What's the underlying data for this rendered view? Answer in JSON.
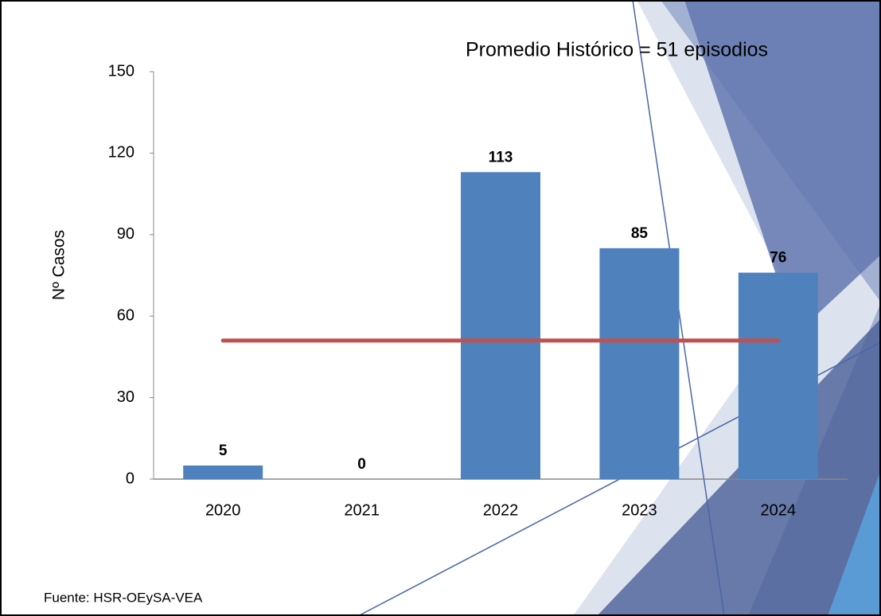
{
  "chart_data": {
    "type": "bar",
    "annotation": "Promedio Histórico = 51 episodios",
    "y_label": "Nº  Casos",
    "source": "Fuente: HSR-OEySA-VEA",
    "categories": [
      "2020",
      "2021",
      "2022",
      "2023",
      "2024"
    ],
    "values": [
      5,
      0,
      113,
      85,
      76
    ],
    "color": "#4f81bd",
    "average": {
      "value": 51,
      "color": "#c0504d"
    },
    "ylim": [
      0,
      150
    ],
    "yticks": [
      0,
      30,
      60,
      90,
      120,
      150
    ],
    "grid": false
  }
}
